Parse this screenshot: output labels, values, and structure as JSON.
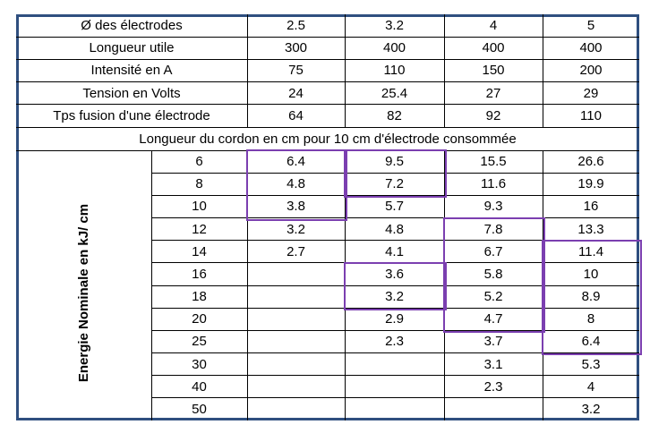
{
  "header_rows": [
    {
      "label": "Ø des électrodes",
      "values": [
        "2.5",
        "3.2",
        "4",
        "5"
      ]
    },
    {
      "label": "Longueur utile",
      "values": [
        "300",
        "400",
        "400",
        "400"
      ]
    },
    {
      "label": "Intensité en A",
      "values": [
        "75",
        "110",
        "150",
        "200"
      ]
    },
    {
      "label": "Tension en Volts",
      "values": [
        "24",
        "25.4",
        "27",
        "29"
      ]
    },
    {
      "label": "Tps fusion d'une électrode",
      "values": [
        "64",
        "82",
        "92",
        "110"
      ]
    }
  ],
  "section_title": "Longueur du cordon en cm pour 10 cm d'électrode consommée",
  "side_label": "Energie Nominale en kJ/ cm",
  "body_rows": [
    {
      "energy": "6",
      "values": [
        "6.4",
        "9.5",
        "15.5",
        "26.6"
      ]
    },
    {
      "energy": "8",
      "values": [
        "4.8",
        "7.2",
        "11.6",
        "19.9"
      ]
    },
    {
      "energy": "10",
      "values": [
        "3.8",
        "5.7",
        "9.3",
        "16"
      ]
    },
    {
      "energy": "12",
      "values": [
        "3.2",
        "4.8",
        "7.8",
        "13.3"
      ]
    },
    {
      "energy": "14",
      "values": [
        "2.7",
        "4.1",
        "6.7",
        "11.4"
      ]
    },
    {
      "energy": "16",
      "values": [
        "",
        "3.6",
        "5.8",
        "10"
      ]
    },
    {
      "energy": "18",
      "values": [
        "",
        "3.2",
        "5.2",
        "8.9"
      ]
    },
    {
      "energy": "20",
      "values": [
        "",
        "2.9",
        "4.7",
        "8"
      ]
    },
    {
      "energy": "25",
      "values": [
        "",
        "2.3",
        "3.7",
        "6.4"
      ]
    },
    {
      "energy": "30",
      "values": [
        "",
        "",
        "3.1",
        "5.3"
      ]
    },
    {
      "energy": "40",
      "values": [
        "",
        "",
        "2.3",
        "4"
      ]
    },
    {
      "energy": "50",
      "values": [
        "",
        "",
        "",
        "3.2"
      ]
    }
  ],
  "highlight_color": "#7b3fb0",
  "border_color": "#2f4f7f"
}
